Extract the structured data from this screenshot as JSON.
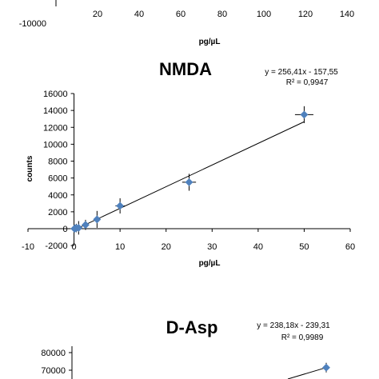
{
  "chart_data": [
    {
      "type": "scatter",
      "title": "",
      "xlabel": "pg/µL",
      "ylabel": "",
      "xlim": [
        -10,
        140
      ],
      "x_ticks": [
        "20",
        "40",
        "60",
        "80",
        "100",
        "120",
        "140"
      ],
      "y_ticks": [
        "-10000"
      ],
      "partially_visible": true
    },
    {
      "type": "scatter",
      "title": "NMDA",
      "xlabel": "pg/µL",
      "ylabel": "counts",
      "xlim": [
        -10,
        60
      ],
      "ylim": [
        -2000,
        16000
      ],
      "x_ticks": [
        "-10",
        "0",
        "10",
        "20",
        "30",
        "40",
        "50",
        "60"
      ],
      "y_ticks": [
        "-2000",
        "0",
        "2000",
        "4000",
        "6000",
        "8000",
        "10000",
        "12000",
        "14000",
        "16000"
      ],
      "equation": "y = 256,41x - 157,55",
      "r2": "R² = 0,9947",
      "trendline": {
        "slope": 256.41,
        "intercept": -157.55,
        "x_range": [
          0,
          50
        ]
      },
      "points": [
        {
          "x": 0.1,
          "y": 0
        },
        {
          "x": 0.25,
          "y": 50
        },
        {
          "x": 0.5,
          "y": 80
        },
        {
          "x": 1,
          "y": 100
        },
        {
          "x": 2.5,
          "y": 450
        },
        {
          "x": 5,
          "y": 1100
        },
        {
          "x": 10,
          "y": 2700
        },
        {
          "x": 25,
          "y": 5500
        },
        {
          "x": 50,
          "y": 13500
        }
      ],
      "y_err": [
        200,
        300,
        500,
        800,
        600,
        1000,
        900,
        1000,
        1000
      ],
      "x_err": [
        0.2,
        0.2,
        0.2,
        0.2,
        0.3,
        0.5,
        1,
        1.5,
        2
      ]
    },
    {
      "type": "scatter",
      "title": "D-Asp",
      "xlabel": "",
      "ylabel": "",
      "equation": "y = 238,18x - 239,31",
      "r2": "R² = 0,9989",
      "y_ticks": [
        "70000",
        "80000"
      ],
      "points": [
        {
          "x": 300,
          "y": 71500
        }
      ],
      "partially_visible": true
    }
  ],
  "colors": {
    "marker": "#4f81bd",
    "line": "#000000",
    "axis": "#000000"
  }
}
